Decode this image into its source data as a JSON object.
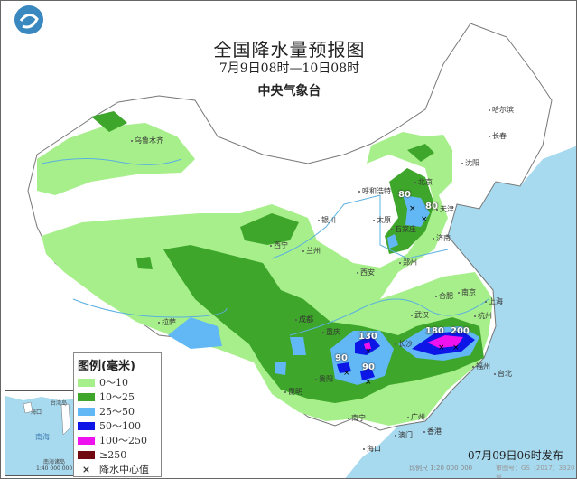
{
  "header": {
    "title": "全国降水量预报图",
    "period": "7月9日08时—10日08时",
    "issuer": "中央气象台"
  },
  "colors": {
    "ocean": "#a7d9ef",
    "rain_0_10": "#a6ef8a",
    "rain_10_25": "#3ea62a",
    "rain_25_50": "#62b8f5",
    "rain_50_100": "#0c16e6",
    "rain_100_250": "#ee12ee",
    "rain_ge_250": "#700a10"
  },
  "legend": {
    "title": "图例(毫米)",
    "items": [
      {
        "label": "0～10",
        "color": "#a6ef8a"
      },
      {
        "label": "10～25",
        "color": "#3ea62a"
      },
      {
        "label": "25～50",
        "color": "#62b8f5"
      },
      {
        "label": "50～100",
        "color": "#0c16e6"
      },
      {
        "label": "100～250",
        "color": "#ee12ee"
      },
      {
        "label": "≥250",
        "color": "#700a10"
      },
      {
        "label": "降水中心值",
        "symbol": "×"
      }
    ]
  },
  "cities": [
    "乌鲁木齐",
    "哈尔滨",
    "长春",
    "沈阳",
    "北京",
    "天津",
    "呼和浩特",
    "石家庄",
    "太原",
    "济南",
    "银川",
    "西宁",
    "兰州",
    "西安",
    "郑州",
    "合肥",
    "南京",
    "上海",
    "杭州",
    "武汉",
    "长沙",
    "福州",
    "台北",
    "成都",
    "重庆",
    "贵阳",
    "昆明",
    "拉萨",
    "南宁",
    "广州",
    "香港",
    "澳门",
    "海口"
  ],
  "rain_centers": [
    "80",
    "80",
    "130",
    "90",
    "90",
    "180",
    "200"
  ],
  "inset": {
    "labels": [
      "南海诸岛",
      "南海",
      "海口",
      "台湾岛"
    ],
    "scale": "1:40 000 000"
  },
  "footer": {
    "issue_time": "07月09日06时发布",
    "scale": "比例尺 1:20 000 000",
    "review_no": "审图号：GS（2017）3320号"
  }
}
